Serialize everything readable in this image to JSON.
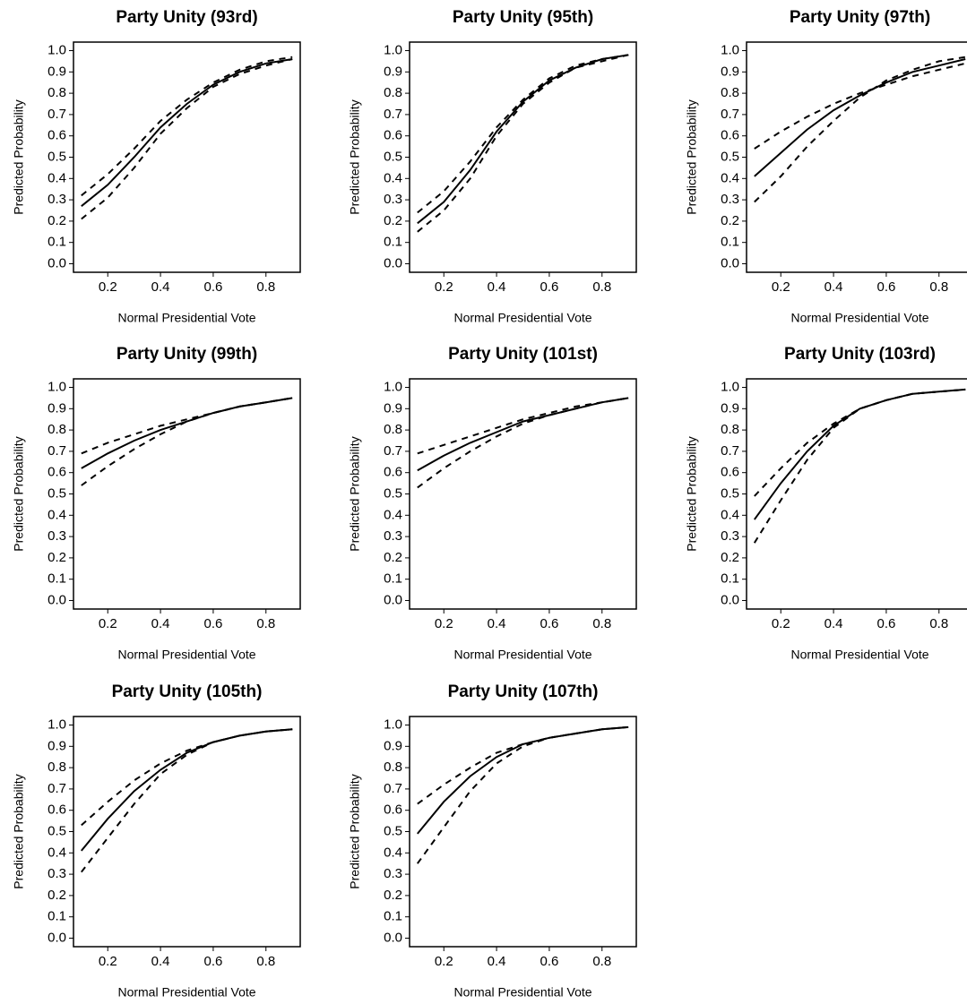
{
  "chart_data": [
    {
      "type": "line",
      "title": "Party Unity (93rd)",
      "xlabel": "Normal Presidential Vote",
      "ylabel": "Predicted Probability",
      "x": [
        0.1,
        0.2,
        0.3,
        0.4,
        0.5,
        0.6,
        0.7,
        0.8,
        0.9
      ],
      "xlim": [
        0.07,
        0.93
      ],
      "ylim": [
        -0.04,
        1.04
      ],
      "xticks": [
        0.2,
        0.4,
        0.6,
        0.8
      ],
      "yticks": [
        {
          "value": 0,
          "label": "0.0"
        },
        0.1,
        0.2,
        0.3,
        0.4,
        0.5,
        0.6,
        0.7,
        0.8,
        0.9,
        {
          "value": 1,
          "label": "1.0"
        }
      ],
      "series": [
        {
          "color": "#000000",
          "dashed": false,
          "values": [
            0.27,
            0.37,
            0.5,
            0.64,
            0.75,
            0.84,
            0.9,
            0.94,
            0.96
          ]
        },
        {
          "color": "#000000",
          "dashed": true,
          "values": [
            0.21,
            0.31,
            0.45,
            0.61,
            0.73,
            0.83,
            0.89,
            0.93,
            0.96
          ]
        },
        {
          "color": "#000000",
          "dashed": true,
          "values": [
            0.32,
            0.42,
            0.54,
            0.67,
            0.77,
            0.85,
            0.91,
            0.95,
            0.97
          ]
        }
      ]
    },
    {
      "type": "line",
      "title": "Party Unity (95th)",
      "xlabel": "Normal Presidential Vote",
      "ylabel": "Predicted Probability",
      "x": [
        0.1,
        0.2,
        0.3,
        0.4,
        0.5,
        0.6,
        0.7,
        0.8,
        0.9
      ],
      "xlim": [
        0.07,
        0.93
      ],
      "ylim": [
        -0.04,
        1.04
      ],
      "xticks": [
        0.2,
        0.4,
        0.6,
        0.8
      ],
      "yticks": [
        {
          "value": 0,
          "label": "0.0"
        },
        0.1,
        0.2,
        0.3,
        0.4,
        0.5,
        0.6,
        0.7,
        0.8,
        0.9,
        {
          "value": 1,
          "label": "1.0"
        }
      ],
      "series": [
        {
          "color": "#000000",
          "dashed": false,
          "values": [
            0.19,
            0.29,
            0.44,
            0.62,
            0.76,
            0.86,
            0.92,
            0.96,
            0.98
          ]
        },
        {
          "color": "#000000",
          "dashed": true,
          "values": [
            0.15,
            0.25,
            0.4,
            0.6,
            0.75,
            0.85,
            0.92,
            0.95,
            0.98
          ]
        },
        {
          "color": "#000000",
          "dashed": true,
          "values": [
            0.24,
            0.34,
            0.48,
            0.64,
            0.77,
            0.87,
            0.93,
            0.96,
            0.98
          ]
        }
      ]
    },
    {
      "type": "line",
      "title": "Party Unity (97th)",
      "xlabel": "Normal Presidential Vote",
      "ylabel": "Predicted Probability",
      "x": [
        0.1,
        0.2,
        0.3,
        0.4,
        0.5,
        0.6,
        0.7,
        0.8,
        0.9
      ],
      "xlim": [
        0.07,
        0.93
      ],
      "ylim": [
        -0.04,
        1.04
      ],
      "xticks": [
        0.2,
        0.4,
        0.6,
        0.8
      ],
      "yticks": [
        {
          "value": 0,
          "label": "0.0"
        },
        0.1,
        0.2,
        0.3,
        0.4,
        0.5,
        0.6,
        0.7,
        0.8,
        0.9,
        {
          "value": 1,
          "label": "1.0"
        }
      ],
      "series": [
        {
          "color": "#000000",
          "dashed": false,
          "values": [
            0.41,
            0.52,
            0.63,
            0.72,
            0.79,
            0.85,
            0.9,
            0.93,
            0.96
          ]
        },
        {
          "color": "#000000",
          "dashed": true,
          "values": [
            0.29,
            0.41,
            0.55,
            0.67,
            0.78,
            0.86,
            0.91,
            0.95,
            0.97
          ]
        },
        {
          "color": "#000000",
          "dashed": true,
          "values": [
            0.54,
            0.62,
            0.69,
            0.75,
            0.8,
            0.84,
            0.88,
            0.91,
            0.94
          ]
        }
      ]
    },
    {
      "type": "line",
      "title": "Party Unity (99th)",
      "xlabel": "Normal Presidential Vote",
      "ylabel": "Predicted Probability",
      "x": [
        0.1,
        0.2,
        0.3,
        0.4,
        0.5,
        0.6,
        0.7,
        0.8,
        0.9
      ],
      "xlim": [
        0.07,
        0.93
      ],
      "ylim": [
        -0.04,
        1.04
      ],
      "xticks": [
        0.2,
        0.4,
        0.6,
        0.8
      ],
      "yticks": [
        {
          "value": 0,
          "label": "0.0"
        },
        0.1,
        0.2,
        0.3,
        0.4,
        0.5,
        0.6,
        0.7,
        0.8,
        0.9,
        {
          "value": 1,
          "label": "1.0"
        }
      ],
      "series": [
        {
          "color": "#000000",
          "dashed": false,
          "values": [
            0.62,
            0.69,
            0.75,
            0.8,
            0.84,
            0.88,
            0.91,
            0.93,
            0.95
          ]
        },
        {
          "color": "#000000",
          "dashed": true,
          "values": [
            0.54,
            0.63,
            0.71,
            0.78,
            0.84,
            0.88,
            0.91,
            0.93,
            0.95
          ]
        },
        {
          "color": "#000000",
          "dashed": true,
          "values": [
            0.69,
            0.74,
            0.78,
            0.82,
            0.85,
            0.88,
            0.91,
            0.93,
            0.95
          ]
        }
      ]
    },
    {
      "type": "line",
      "title": "Party Unity (101st)",
      "xlabel": "Normal Presidential Vote",
      "ylabel": "Predicted Probability",
      "x": [
        0.1,
        0.2,
        0.3,
        0.4,
        0.5,
        0.6,
        0.7,
        0.8,
        0.9
      ],
      "xlim": [
        0.07,
        0.93
      ],
      "ylim": [
        -0.04,
        1.04
      ],
      "xticks": [
        0.2,
        0.4,
        0.6,
        0.8
      ],
      "yticks": [
        {
          "value": 0,
          "label": "0.0"
        },
        0.1,
        0.2,
        0.3,
        0.4,
        0.5,
        0.6,
        0.7,
        0.8,
        0.9,
        {
          "value": 1,
          "label": "1.0"
        }
      ],
      "series": [
        {
          "color": "#000000",
          "dashed": false,
          "values": [
            0.61,
            0.68,
            0.74,
            0.79,
            0.84,
            0.87,
            0.9,
            0.93,
            0.95
          ]
        },
        {
          "color": "#000000",
          "dashed": true,
          "values": [
            0.53,
            0.62,
            0.7,
            0.77,
            0.83,
            0.87,
            0.9,
            0.93,
            0.95
          ]
        },
        {
          "color": "#000000",
          "dashed": true,
          "values": [
            0.69,
            0.73,
            0.77,
            0.81,
            0.85,
            0.88,
            0.91,
            0.93,
            0.95
          ]
        }
      ]
    },
    {
      "type": "line",
      "title": "Party Unity (103rd)",
      "xlabel": "Normal Presidential Vote",
      "ylabel": "Predicted Probability",
      "x": [
        0.1,
        0.2,
        0.3,
        0.4,
        0.5,
        0.6,
        0.7,
        0.8,
        0.9
      ],
      "xlim": [
        0.07,
        0.93
      ],
      "ylim": [
        -0.04,
        1.04
      ],
      "xticks": [
        0.2,
        0.4,
        0.6,
        0.8
      ],
      "yticks": [
        {
          "value": 0,
          "label": "0.0"
        },
        0.1,
        0.2,
        0.3,
        0.4,
        0.5,
        0.6,
        0.7,
        0.8,
        0.9,
        {
          "value": 1,
          "label": "1.0"
        }
      ],
      "series": [
        {
          "color": "#000000",
          "dashed": false,
          "values": [
            0.38,
            0.55,
            0.7,
            0.82,
            0.9,
            0.94,
            0.97,
            0.98,
            0.99
          ]
        },
        {
          "color": "#000000",
          "dashed": true,
          "values": [
            0.27,
            0.47,
            0.66,
            0.81,
            0.9,
            0.94,
            0.97,
            0.98,
            0.99
          ]
        },
        {
          "color": "#000000",
          "dashed": true,
          "values": [
            0.49,
            0.62,
            0.74,
            0.83,
            0.9,
            0.94,
            0.97,
            0.98,
            0.99
          ]
        }
      ]
    },
    {
      "type": "line",
      "title": "Party Unity (105th)",
      "xlabel": "Normal Presidential Vote",
      "ylabel": "Predicted Probability",
      "x": [
        0.1,
        0.2,
        0.3,
        0.4,
        0.5,
        0.6,
        0.7,
        0.8,
        0.9
      ],
      "xlim": [
        0.07,
        0.93
      ],
      "ylim": [
        -0.04,
        1.04
      ],
      "xticks": [
        0.2,
        0.4,
        0.6,
        0.8
      ],
      "yticks": [
        {
          "value": 0,
          "label": "0.0"
        },
        0.1,
        0.2,
        0.3,
        0.4,
        0.5,
        0.6,
        0.7,
        0.8,
        0.9,
        {
          "value": 1,
          "label": "1.0"
        }
      ],
      "series": [
        {
          "color": "#000000",
          "dashed": false,
          "values": [
            0.41,
            0.56,
            0.69,
            0.79,
            0.87,
            0.92,
            0.95,
            0.97,
            0.98
          ]
        },
        {
          "color": "#000000",
          "dashed": true,
          "values": [
            0.31,
            0.47,
            0.63,
            0.77,
            0.86,
            0.92,
            0.95,
            0.97,
            0.98
          ]
        },
        {
          "color": "#000000",
          "dashed": true,
          "values": [
            0.53,
            0.64,
            0.74,
            0.82,
            0.88,
            0.92,
            0.95,
            0.97,
            0.98
          ]
        }
      ]
    },
    {
      "type": "line",
      "title": "Party Unity (107th)",
      "xlabel": "Normal Presidential Vote",
      "ylabel": "Predicted Probability",
      "x": [
        0.1,
        0.2,
        0.3,
        0.4,
        0.5,
        0.6,
        0.7,
        0.8,
        0.9
      ],
      "xlim": [
        0.07,
        0.93
      ],
      "ylim": [
        -0.04,
        1.04
      ],
      "xticks": [
        0.2,
        0.4,
        0.6,
        0.8
      ],
      "yticks": [
        {
          "value": 0,
          "label": "0.0"
        },
        0.1,
        0.2,
        0.3,
        0.4,
        0.5,
        0.6,
        0.7,
        0.8,
        0.9,
        {
          "value": 1,
          "label": "1.0"
        }
      ],
      "series": [
        {
          "color": "#000000",
          "dashed": false,
          "values": [
            0.49,
            0.64,
            0.76,
            0.85,
            0.91,
            0.94,
            0.96,
            0.98,
            0.99
          ]
        },
        {
          "color": "#000000",
          "dashed": true,
          "values": [
            0.35,
            0.52,
            0.69,
            0.82,
            0.9,
            0.94,
            0.96,
            0.98,
            0.99
          ]
        },
        {
          "color": "#000000",
          "dashed": true,
          "values": [
            0.63,
            0.72,
            0.8,
            0.87,
            0.91,
            0.94,
            0.96,
            0.98,
            0.99
          ]
        }
      ]
    }
  ]
}
